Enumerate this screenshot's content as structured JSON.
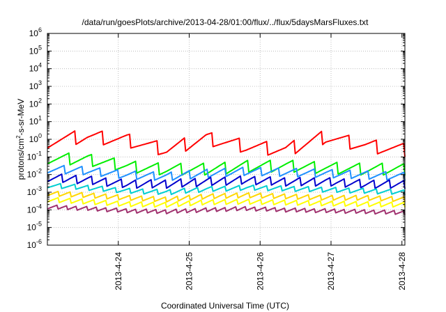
{
  "chart_data": {
    "type": "line",
    "title": "/data/run/goesPlots/archive/2013-04-28/01:00/flux/../flux/5daysMarsFluxes.txt",
    "xlabel": "Coordinated Universal Time (UTC)",
    "ylabel_parts": [
      "protons/cm",
      "2",
      "-s-sr-MeV"
    ],
    "x_range": [
      "2013-04-23 00:00",
      "2013-04-28 01:00"
    ],
    "x_ticks": [
      "2013-4-24",
      "2013-4-25",
      "2013-4-26",
      "2013-4-27",
      "2013-4-28"
    ],
    "y_scale": "log",
    "ylim": [
      1e-06,
      1000000.0
    ],
    "y_tick_exponents": [
      "-6",
      "-5",
      "-4",
      "-3",
      "-2",
      "-1",
      "0",
      "1",
      "2",
      "3",
      "4",
      "5",
      "6"
    ],
    "grid": true,
    "legend": "none",
    "series": [
      {
        "color": "#ff0000",
        "base": [
          0.8,
          1.4,
          0.85,
          0.25,
          1.1,
          0.4,
          0.25,
          1.4,
          0.45,
          0.25
        ],
        "depth": 0.4,
        "freq": 13
      },
      {
        "color": "#00ee00",
        "base": [
          0.09,
          0.07,
          0.03,
          0.02,
          0.02,
          0.03,
          0.03,
          0.025,
          0.02,
          0.02
        ],
        "depth": 0.35,
        "freq": 16
      },
      {
        "color": "#1e90ff",
        "base": [
          0.022,
          0.017,
          0.01,
          0.008,
          0.012,
          0.016,
          0.014,
          0.012,
          0.01,
          0.008
        ],
        "depth": 0.25,
        "freq": 20
      },
      {
        "color": "#0000cd",
        "base": [
          0.007,
          0.005,
          0.003,
          0.003,
          0.004,
          0.005,
          0.004,
          0.004,
          0.003,
          0.0028
        ],
        "depth": 0.25,
        "freq": 24
      },
      {
        "color": "#00ced1",
        "base": [
          0.0025,
          0.0018,
          0.0012,
          0.001,
          0.0015,
          0.0018,
          0.0016,
          0.0014,
          0.0012,
          0.001
        ],
        "depth": 0.15,
        "freq": 26
      },
      {
        "color": "#ffd700",
        "base": [
          0.0009,
          0.0007,
          0.0005,
          0.0004,
          0.0006,
          0.0007,
          0.0006,
          0.0005,
          0.0005,
          0.0004
        ],
        "depth": 0.15,
        "freq": 30
      },
      {
        "color": "#ffff00",
        "base": [
          0.0004,
          0.0003,
          0.00022,
          0.0002,
          0.00028,
          0.0003,
          0.00027,
          0.00024,
          0.00022,
          0.0002
        ],
        "depth": 0.15,
        "freq": 30
      },
      {
        "color": "#a0306e",
        "base": [
          0.00015,
          0.00012,
          9e-05,
          8e-05,
          0.0001,
          0.00012,
          0.0001,
          9e-05,
          8e-05,
          7e-05
        ],
        "depth": 0.12,
        "freq": 36
      }
    ]
  }
}
